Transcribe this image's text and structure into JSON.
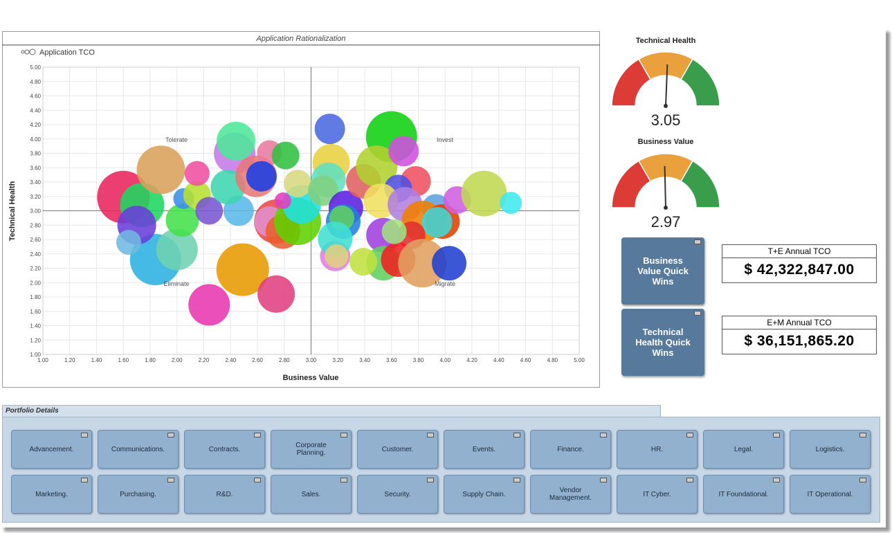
{
  "chart_data": [
    {
      "type": "bubble",
      "title": "Application Rationalization",
      "legend": "Application TCO",
      "xlabel": "Business Value",
      "ylabel": "Technical Health",
      "quadrant_labels": [
        "Tolerate",
        "Invest",
        "Eliminate",
        "Migrate"
      ],
      "crosshair": [
        3,
        3
      ],
      "xlim": [
        1,
        5
      ],
      "ylim": [
        1,
        5
      ],
      "xticks": [
        {
          "value": 1,
          "label": "1.00"
        },
        {
          "value": 1.2,
          "label": "1.20"
        },
        {
          "value": 1.4,
          "label": "1.40"
        },
        {
          "value": 1.6,
          "label": "1.60"
        },
        {
          "value": 1.8,
          "label": "1.80"
        },
        {
          "value": 2,
          "label": "2.00"
        },
        {
          "value": 2.2,
          "label": "2.20"
        },
        {
          "value": 2.4,
          "label": "2.40"
        },
        {
          "value": 2.6,
          "label": "2.60"
        },
        {
          "value": 2.8,
          "label": "2.80"
        },
        {
          "value": 3,
          "label": "3.00"
        },
        {
          "value": 3.2,
          "label": "3.20"
        },
        {
          "value": 3.4,
          "label": "3.40"
        },
        {
          "value": 3.6,
          "label": "3.60"
        },
        {
          "value": 3.8,
          "label": "3.80"
        },
        {
          "value": 4,
          "label": "4.00"
        },
        {
          "value": 4.2,
          "label": "4.20"
        },
        {
          "value": 4.4,
          "label": "4.40"
        },
        {
          "value": 4.6,
          "label": "4.60"
        },
        {
          "value": 4.8,
          "label": "4.80"
        },
        {
          "value": 5,
          "label": "5.00"
        }
      ],
      "yticks": [
        {
          "value": 1,
          "label": "1.00"
        },
        {
          "value": 1.2,
          "label": "1.20"
        },
        {
          "value": 1.4,
          "label": "1.40"
        },
        {
          "value": 1.6,
          "label": "1.60"
        },
        {
          "value": 1.8,
          "label": "1.80"
        },
        {
          "value": 2,
          "label": "2.00"
        },
        {
          "value": 2.2,
          "label": "2.20"
        },
        {
          "value": 2.4,
          "label": "2.40"
        },
        {
          "value": 2.6,
          "label": "2.60"
        },
        {
          "value": 2.8,
          "label": "2.80"
        },
        {
          "value": 3,
          "label": "3.00"
        },
        {
          "value": 3.2,
          "label": "3.20"
        },
        {
          "value": 3.4,
          "label": "3.40"
        },
        {
          "value": 3.6,
          "label": "3.60"
        },
        {
          "value": 3.8,
          "label": "3.80"
        },
        {
          "value": 4,
          "label": "4.00"
        },
        {
          "value": 4.2,
          "label": "4.20"
        },
        {
          "value": 4.4,
          "label": "4.40"
        },
        {
          "value": 4.6,
          "label": "4.60"
        },
        {
          "value": 4.8,
          "label": "4.80"
        },
        {
          "value": 5,
          "label": "5.00"
        }
      ],
      "grid": true,
      "x": [
        1.6,
        1.74,
        1.88,
        1.84,
        1.7,
        1.64,
        2.0,
        2.04,
        2.05,
        2.15,
        2.15,
        2.24,
        2.24,
        2.43,
        2.44,
        2.49,
        2.46,
        2.38,
        2.59,
        2.69,
        2.81,
        2.63,
        2.74,
        2.69,
        2.79,
        2.74,
        2.9,
        2.93,
        2.9,
        2.79,
        3.14,
        3.15,
        3.13,
        3.09,
        3.26,
        3.24,
        3.23,
        3.18,
        3.18,
        3.19,
        3.39,
        3.6,
        3.49,
        3.69,
        3.78,
        3.65,
        3.52,
        3.7,
        3.93,
        3.83,
        3.98,
        3.94,
        3.75,
        3.54,
        3.54,
        3.39,
        3.65,
        3.83,
        4.03,
        4.09,
        4.29,
        4.49,
        3.62
      ],
      "values": [
        3.19,
        3.08,
        3.57,
        2.32,
        2.8,
        2.56,
        2.46,
        2.87,
        3.17,
        3.22,
        3.52,
        3.0,
        1.69,
        3.8,
        3.97,
        2.18,
        3.0,
        3.33,
        3.48,
        3.81,
        3.77,
        3.48,
        2.85,
        2.85,
        2.71,
        1.84,
        2.85,
        3.09,
        3.38,
        3.14,
        4.14,
        3.67,
        3.43,
        3.28,
        3.04,
        2.85,
        2.9,
        2.37,
        2.61,
        2.37,
        3.41,
        4.03,
        3.62,
        3.83,
        3.41,
        3.31,
        3.14,
        3.09,
        3.04,
        2.85,
        2.85,
        2.84,
        2.66,
        2.66,
        2.27,
        2.29,
        2.32,
        2.27,
        2.27,
        3.15,
        3.24,
        3.11,
        2.71
      ],
      "sizes": [
        38,
        32,
        35,
        37,
        28,
        18,
        30,
        24,
        15,
        20,
        18,
        20,
        30,
        30,
        28,
        38,
        22,
        25,
        30,
        18,
        20,
        22,
        32,
        22,
        25,
        27,
        34,
        28,
        20,
        12,
        22,
        27,
        25,
        22,
        25,
        25,
        18,
        22,
        25,
        17,
        25,
        37,
        30,
        22,
        22,
        20,
        25,
        25,
        20,
        30,
        25,
        22,
        20,
        25,
        25,
        20,
        25,
        35,
        25,
        20,
        33,
        16,
        18
      ],
      "colors": [
        "#e8245e",
        "#1ed760",
        "#d9a05b",
        "#2ab0e0",
        "#6a3ddb",
        "#6fb8e0",
        "#6fd1b0",
        "#44e04a",
        "#3a8ee8",
        "#b6e030",
        "#f050a0",
        "#7a55d0",
        "#e838b0",
        "#c57ae8",
        "#4de89a",
        "#e89a00",
        "#5ab8e8",
        "#3dd6b0",
        "#e87878",
        "#e87aa0",
        "#30c040",
        "#1a3ee0",
        "#e84848",
        "#e090d0",
        "#e86030",
        "#e04080",
        "#60d000",
        "#20e0e0",
        "#d8d880",
        "#e040c0",
        "#4a6ae0",
        "#e8d040",
        "#60e0c0",
        "#80d080",
        "#5a20e0",
        "#2080e0",
        "#60d060",
        "#e080e0",
        "#40e0d0",
        "#e0d080",
        "#e06060",
        "#10d010",
        "#b0d030",
        "#d050e0",
        "#f05060",
        "#5050e0",
        "#f0e060",
        "#b080e0",
        "#60a0e0",
        "#f08000",
        "#e04000",
        "#40d8d8",
        "#e03030",
        "#a040e0",
        "#60d060",
        "#c0e040",
        "#f02020",
        "#e0a060",
        "#2040d0",
        "#d060e0",
        "#c0d850",
        "#40e8f0",
        "#a0e080"
      ]
    },
    {
      "type": "gauge",
      "title": "Technical Health",
      "value": 3.05,
      "ylim": [
        1,
        5
      ],
      "colors": [
        "#dd3b35",
        "#e9a03d",
        "#3a9d4b"
      ]
    },
    {
      "type": "gauge",
      "title": "Business Value",
      "value": 2.97,
      "ylim": [
        1,
        5
      ],
      "colors": [
        "#dd3b35",
        "#e9a03d",
        "#3a9d4b"
      ]
    }
  ],
  "quick_wins": [
    "Business Value Quick Wins",
    "Technical Health Quick Wins"
  ],
  "tco": [
    {
      "label": "T+E Annual TCO",
      "value": "$ 42,322,847.00"
    },
    {
      "label": "E+M Annual TCO",
      "value": "$ 36,151,865.20"
    }
  ],
  "portfolio": {
    "title": "Portfolio Details",
    "buttons": [
      "Advancement.",
      "Communications.",
      "Contracts.",
      "Corporate Planning.",
      "Customer.",
      "Events.",
      "Finance.",
      "HR.",
      "Legal.",
      "Logistics.",
      "Marketing.",
      "Purchasing.",
      "R&D.",
      "Sales.",
      "Security.",
      "Supply Chain.",
      "Vendor Management.",
      "IT Cyber.",
      "IT Foundational.",
      "IT Operational."
    ]
  }
}
